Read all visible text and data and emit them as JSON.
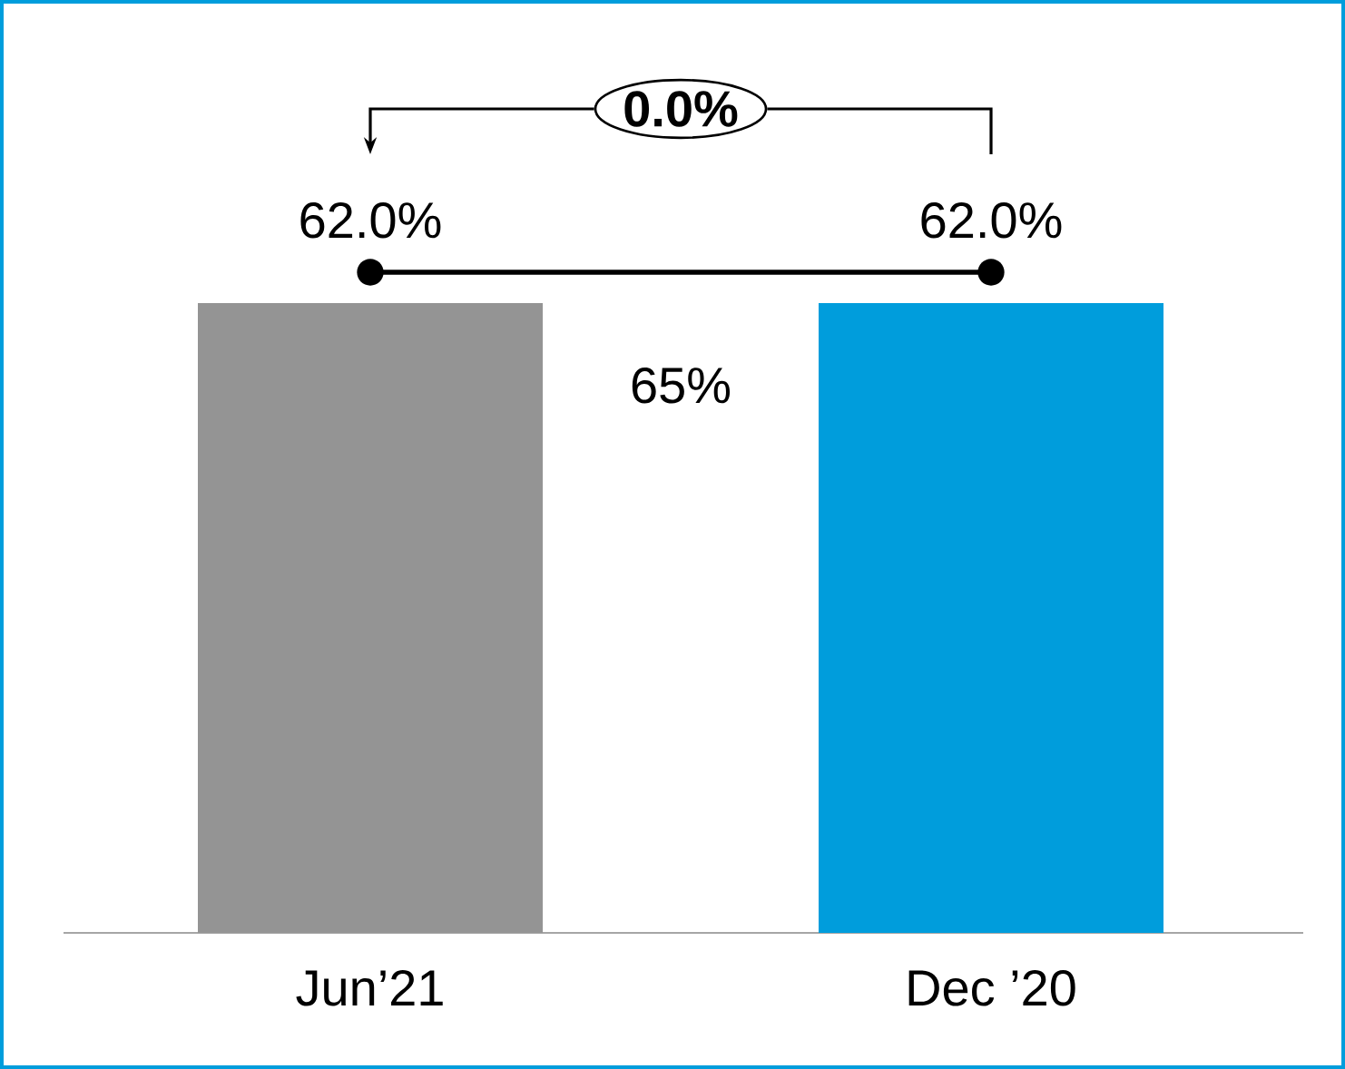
{
  "chart_data": {
    "type": "bar",
    "categories": [
      "Jun’21",
      "Dec ’20"
    ],
    "values": [
      62.0,
      62.0
    ],
    "colors": [
      "#949494",
      "#009ddc"
    ],
    "value_labels": [
      "62.0%",
      "62.0%"
    ],
    "annotations": [
      "0.0%",
      "65%"
    ]
  }
}
